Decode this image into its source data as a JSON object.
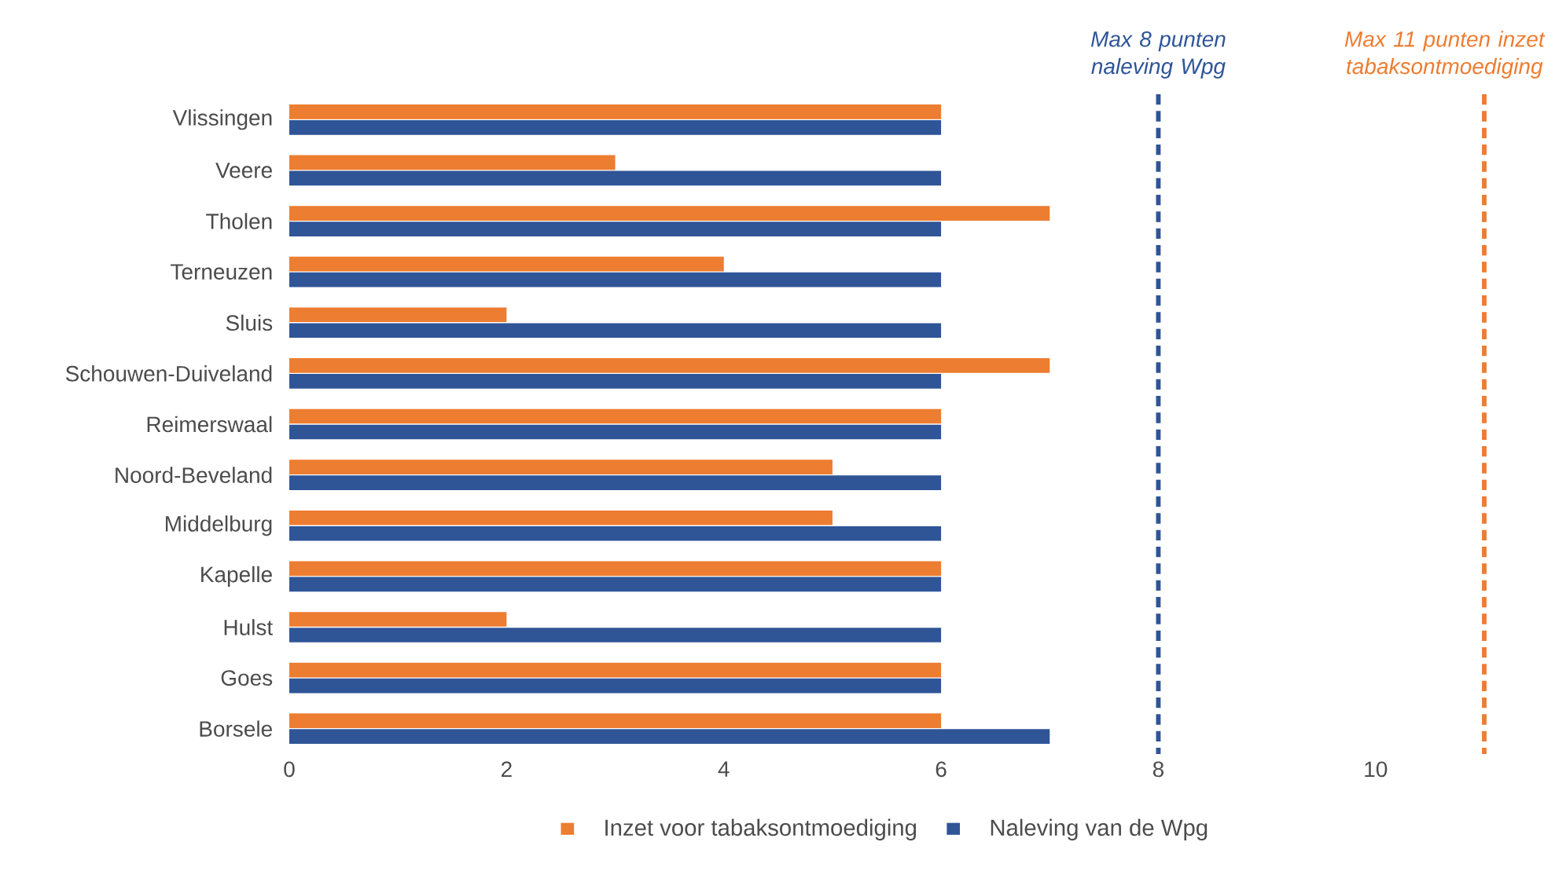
{
  "chart_data": {
    "type": "bar",
    "orientation": "horizontal",
    "categories": [
      "Vlissingen",
      "Veere",
      "Tholen",
      "Terneuzen",
      "Sluis",
      "Schouwen-Duiveland",
      "Reimerswaal",
      "Noord-Beveland",
      "Middelburg",
      "Kapelle",
      "Hulst",
      "Goes",
      "Borsele"
    ],
    "series": [
      {
        "name": "Inzet voor tabaksontmoediging",
        "color": "#ed7d31",
        "values": [
          6,
          3,
          7,
          4,
          2,
          7,
          6,
          5,
          5,
          6,
          2,
          6,
          6
        ]
      },
      {
        "name": "Naleving van de Wpg",
        "color": "#2f5597",
        "values": [
          6,
          6,
          6,
          6,
          6,
          6,
          6,
          6,
          6,
          6,
          6,
          6,
          7
        ]
      }
    ],
    "xlim": [
      0,
      11
    ],
    "xticks": [
      0,
      2,
      4,
      6,
      8,
      10
    ],
    "ref_lines": [
      {
        "axis": "x",
        "value": 8,
        "label": "Max 8 punten naleving Wpg",
        "color": "#2f5597",
        "line_style": "dashed"
      },
      {
        "axis": "x",
        "value": 11,
        "label": "Max 11 punten inzet tabaksontmoediging",
        "color": "#ed7d31",
        "line_style": "dashed"
      }
    ],
    "grid": false,
    "legend": "bottom"
  }
}
